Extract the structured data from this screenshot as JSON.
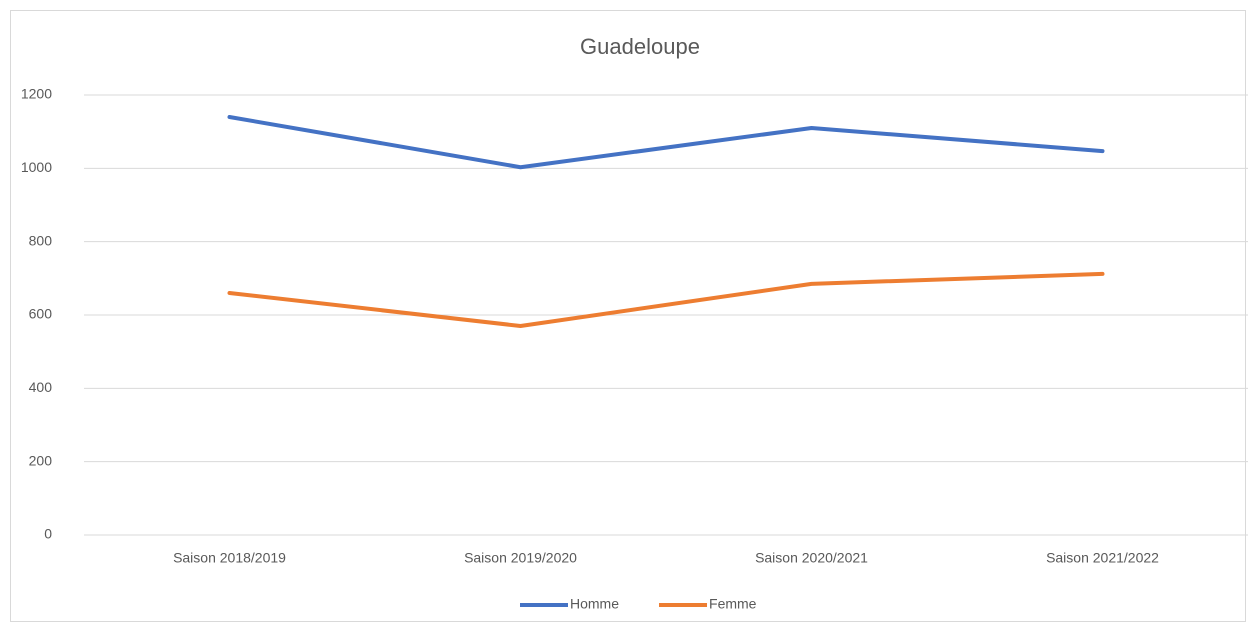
{
  "chart_data": {
    "type": "line",
    "title": "Guadeloupe",
    "categories": [
      "Saison 2018/2019",
      "Saison 2019/2020",
      "Saison 2020/2021",
      "Saison 2021/2022"
    ],
    "series": [
      {
        "name": "Homme",
        "color": "#4472c4",
        "values": [
          1140,
          1003,
          1110,
          1047
        ]
      },
      {
        "name": "Femme",
        "color": "#ed7d31",
        "values": [
          660,
          570,
          685,
          712
        ]
      }
    ],
    "ylim": [
      0,
      1200
    ],
    "yticks": [
      0,
      200,
      400,
      600,
      800,
      1000,
      1200
    ],
    "grid": true,
    "legend": "bottom"
  }
}
